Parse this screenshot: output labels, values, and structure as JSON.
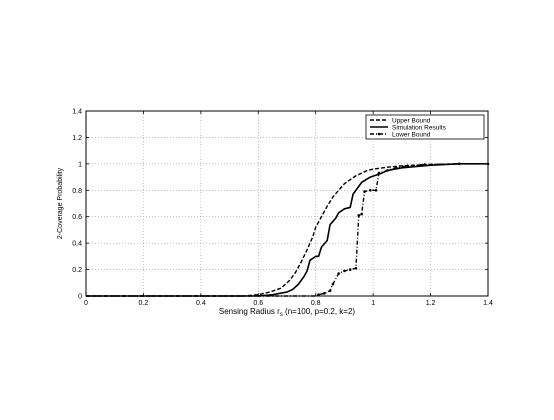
{
  "chart_data": {
    "type": "line",
    "xlabel": "Sensing Radius r",
    "xlabel_sub": "s",
    "xlabel_suffix": " (n=100, p=0.2, k=2)",
    "ylabel": "2-Coverage Probability",
    "xlim": [
      0,
      1.4
    ],
    "ylim": [
      0,
      1.4
    ],
    "x_ticks": [
      0,
      0.2,
      0.4,
      0.6,
      0.8,
      1,
      1.2,
      1.4
    ],
    "y_ticks": [
      0,
      0.2,
      0.4,
      0.6,
      0.8,
      1,
      1.2,
      1.4
    ],
    "grid": true,
    "legend_position": "top-right",
    "series": [
      {
        "name": "Upper Bound",
        "style": "dashed",
        "points": [
          [
            0.0,
            0
          ],
          [
            0.55,
            0
          ],
          [
            0.6,
            0.01
          ],
          [
            0.64,
            0.03
          ],
          [
            0.68,
            0.06
          ],
          [
            0.71,
            0.12
          ],
          [
            0.73,
            0.18
          ],
          [
            0.75,
            0.26
          ],
          [
            0.77,
            0.35
          ],
          [
            0.79,
            0.45
          ],
          [
            0.8,
            0.52
          ],
          [
            0.82,
            0.6
          ],
          [
            0.84,
            0.68
          ],
          [
            0.86,
            0.75
          ],
          [
            0.88,
            0.8
          ],
          [
            0.9,
            0.85
          ],
          [
            0.92,
            0.88
          ],
          [
            0.94,
            0.91
          ],
          [
            0.96,
            0.93
          ],
          [
            0.98,
            0.95
          ],
          [
            1.0,
            0.96
          ],
          [
            1.05,
            0.975
          ],
          [
            1.1,
            0.985
          ],
          [
            1.2,
            0.995
          ],
          [
            1.3,
            1.0
          ],
          [
            1.4,
            1.0
          ]
        ]
      },
      {
        "name": "Simulation Results",
        "style": "solid",
        "points": [
          [
            0.0,
            0
          ],
          [
            0.6,
            0
          ],
          [
            0.65,
            0.01
          ],
          [
            0.7,
            0.03
          ],
          [
            0.72,
            0.05
          ],
          [
            0.74,
            0.09
          ],
          [
            0.76,
            0.15
          ],
          [
            0.77,
            0.19
          ],
          [
            0.78,
            0.27
          ],
          [
            0.8,
            0.3
          ],
          [
            0.81,
            0.3
          ],
          [
            0.82,
            0.37
          ],
          [
            0.84,
            0.42
          ],
          [
            0.85,
            0.54
          ],
          [
            0.87,
            0.59
          ],
          [
            0.88,
            0.63
          ],
          [
            0.9,
            0.66
          ],
          [
            0.92,
            0.67
          ],
          [
            0.93,
            0.77
          ],
          [
            0.96,
            0.86
          ],
          [
            0.99,
            0.9
          ],
          [
            1.03,
            0.93
          ],
          [
            1.05,
            0.95
          ],
          [
            1.1,
            0.97
          ],
          [
            1.2,
            0.99
          ],
          [
            1.3,
            1.0
          ],
          [
            1.4,
            1.0
          ]
        ]
      },
      {
        "name": "Lower Bound",
        "style": "dashdot-marker",
        "points": [
          [
            0.0,
            0
          ],
          [
            0.8,
            0
          ],
          [
            0.81,
            0.01
          ],
          [
            0.83,
            0.02
          ],
          [
            0.85,
            0.04
          ],
          [
            0.86,
            0.09
          ],
          [
            0.88,
            0.17
          ],
          [
            0.9,
            0.19
          ],
          [
            0.92,
            0.2
          ],
          [
            0.94,
            0.21
          ],
          [
            0.95,
            0.61
          ],
          [
            0.96,
            0.62
          ],
          [
            0.97,
            0.79
          ],
          [
            0.99,
            0.8
          ],
          [
            1.01,
            0.8
          ],
          [
            1.02,
            0.93
          ],
          [
            1.05,
            0.95
          ],
          [
            1.08,
            0.97
          ],
          [
            1.12,
            0.985
          ],
          [
            1.18,
            0.995
          ],
          [
            1.3,
            1.0
          ],
          [
            1.4,
            1.0
          ]
        ]
      }
    ]
  }
}
